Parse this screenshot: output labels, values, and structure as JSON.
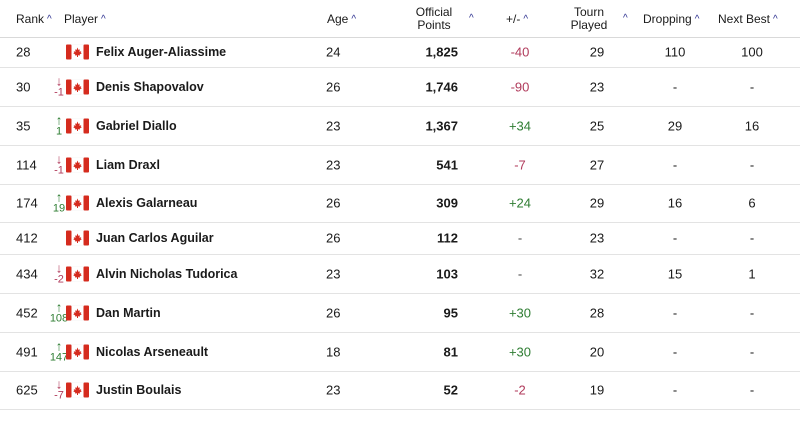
{
  "header": {
    "rank": "Rank",
    "player": "Player",
    "age": "Age",
    "points_line1": "Official",
    "points_line2": "Points",
    "plusminus": "+/-",
    "tourn_line1": "Tourn",
    "tourn_line2": "Played",
    "dropping": "Dropping",
    "next_best": "Next Best",
    "sort_glyph": "^"
  },
  "flag_icon": "canada-flag-icon",
  "colors": {
    "positive": "#2e7d32",
    "negative": "#b03a5b",
    "sort_accent": "#2b2f8f"
  },
  "rows": [
    {
      "rank": "28",
      "move_dir": "",
      "move": "",
      "name": "Felix Auger-Aliassime",
      "age": "24",
      "points": "1,825",
      "pm": "-40",
      "pm_type": "neg",
      "tourn": "29",
      "dropping": "110",
      "next_best": "100"
    },
    {
      "rank": "30",
      "move_dir": "down",
      "move": "-1",
      "name": "Denis Shapovalov",
      "age": "26",
      "points": "1,746",
      "pm": "-90",
      "pm_type": "neg",
      "tourn": "23",
      "dropping": "-",
      "next_best": "-"
    },
    {
      "rank": "35",
      "move_dir": "up",
      "move": "1",
      "name": "Gabriel Diallo",
      "age": "23",
      "points": "1,367",
      "pm": "+34",
      "pm_type": "pos",
      "tourn": "25",
      "dropping": "29",
      "next_best": "16"
    },
    {
      "rank": "114",
      "move_dir": "down",
      "move": "-1",
      "name": "Liam Draxl",
      "age": "23",
      "points": "541",
      "pm": "-7",
      "pm_type": "neg",
      "tourn": "27",
      "dropping": "-",
      "next_best": "-"
    },
    {
      "rank": "174",
      "move_dir": "up",
      "move": "19",
      "name": "Alexis Galarneau",
      "age": "26",
      "points": "309",
      "pm": "+24",
      "pm_type": "pos",
      "tourn": "29",
      "dropping": "16",
      "next_best": "6"
    },
    {
      "rank": "412",
      "move_dir": "",
      "move": "",
      "name": "Juan Carlos Aguilar",
      "age": "26",
      "points": "112",
      "pm": "-",
      "pm_type": "neutral",
      "tourn": "23",
      "dropping": "-",
      "next_best": "-"
    },
    {
      "rank": "434",
      "move_dir": "down",
      "move": "-2",
      "name": "Alvin Nicholas Tudorica",
      "age": "23",
      "points": "103",
      "pm": "-",
      "pm_type": "neutral",
      "tourn": "32",
      "dropping": "15",
      "next_best": "1"
    },
    {
      "rank": "452",
      "move_dir": "up",
      "move": "108",
      "name": "Dan Martin",
      "age": "26",
      "points": "95",
      "pm": "+30",
      "pm_type": "pos",
      "tourn": "28",
      "dropping": "-",
      "next_best": "-"
    },
    {
      "rank": "491",
      "move_dir": "up",
      "move": "147",
      "name": "Nicolas Arseneault",
      "age": "18",
      "points": "81",
      "pm": "+30",
      "pm_type": "pos",
      "tourn": "20",
      "dropping": "-",
      "next_best": "-"
    },
    {
      "rank": "625",
      "move_dir": "down",
      "move": "-7",
      "name": "Justin Boulais",
      "age": "23",
      "points": "52",
      "pm": "-2",
      "pm_type": "neg",
      "tourn": "19",
      "dropping": "-",
      "next_best": "-"
    }
  ]
}
